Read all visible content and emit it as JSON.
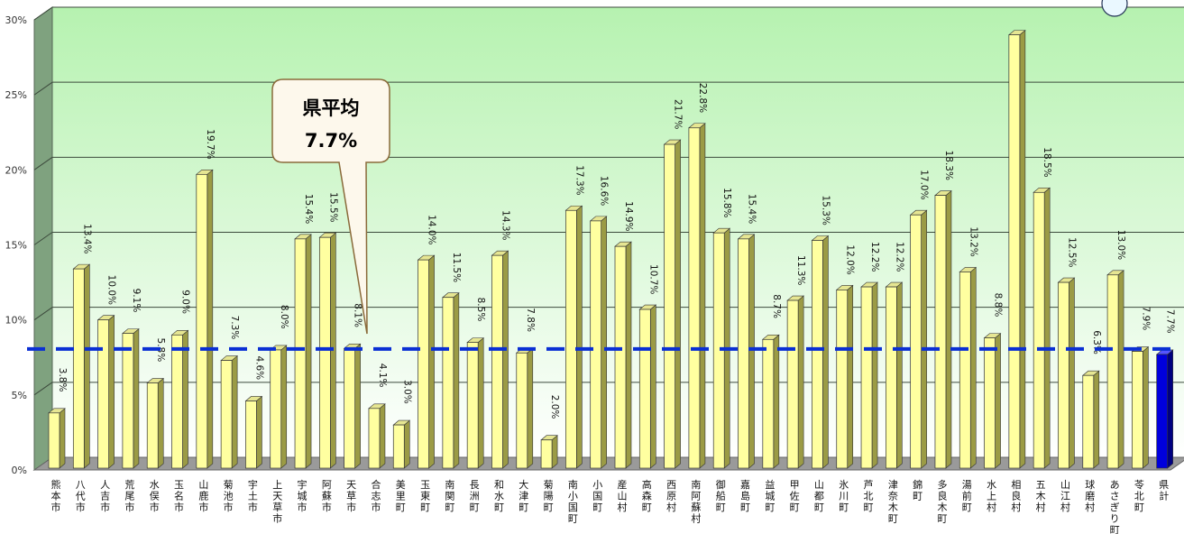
{
  "chart_data": {
    "type": "bar",
    "ylim": [
      0,
      30
    ],
    "y_ticks": [
      "0%",
      "5%",
      "10%",
      "15%",
      "20%",
      "25%",
      "30%"
    ],
    "grid": true,
    "value_suffix": "%",
    "categories": [
      "熊本市",
      "八代市",
      "人吉市",
      "荒尾市",
      "水俣市",
      "玉名市",
      "山鹿市",
      "菊池市",
      "宇土市",
      "上天草市",
      "宇城市",
      "阿蘇市",
      "天草市",
      "合志市",
      "美里町",
      "玉東町",
      "南関町",
      "長洲町",
      "和水町",
      "大津町",
      "菊陽町",
      "南小国町",
      "小国町",
      "産山村",
      "高森町",
      "西原村",
      "南阿蘇村",
      "御船町",
      "嘉島町",
      "益城町",
      "甲佐町",
      "山都町",
      "氷川町",
      "芦北町",
      "津奈木町",
      "錦町",
      "多良木町",
      "湯前町",
      "水上村",
      "相良村",
      "五木村",
      "山江村",
      "球磨村",
      "あさぎり町",
      "苓北町",
      "県計"
    ],
    "values": [
      3.8,
      13.4,
      10.0,
      9.1,
      5.8,
      9.0,
      19.7,
      7.3,
      4.6,
      8.0,
      15.4,
      15.5,
      8.1,
      4.1,
      3.0,
      14.0,
      11.5,
      8.5,
      14.3,
      7.8,
      2.0,
      17.3,
      16.6,
      14.9,
      10.7,
      21.7,
      22.8,
      15.8,
      15.4,
      8.7,
      11.3,
      15.3,
      12.0,
      12.2,
      12.2,
      17.0,
      18.3,
      13.2,
      8.8,
      29.0,
      18.5,
      12.5,
      6.3,
      13.0,
      7.9,
      7.7
    ],
    "value_labels": [
      "3.8%",
      "13.4%",
      "10.0%",
      "9.1%",
      "5.8%",
      "9.0%",
      "19.7%",
      "7.3%",
      "4.6%",
      "8.0%",
      "15.4%",
      "15.5%",
      "8.1%",
      "4.1%",
      "3.0%",
      "14.0%",
      "11.5%",
      "8.5%",
      "14.3%",
      "7.8%",
      "2.0%",
      "17.3%",
      "16.6%",
      "14.9%",
      "10.7%",
      "21.7%",
      "22.8%",
      "15.8%",
      "15.4%",
      "8.7%",
      "11.3%",
      "15.3%",
      "12.0%",
      "12.2%",
      "12.2%",
      "17.0%",
      "18.3%",
      "13.2%",
      "8.8%",
      "",
      "18.5%",
      "12.5%",
      "6.3%",
      "13.0%",
      "7.9%",
      "7.7%"
    ],
    "reference_line": {
      "value": 7.7
    },
    "callout": {
      "line1": "県平均",
      "line2": "7.7%"
    },
    "colors": {
      "bar_front": "#ffffa0",
      "bar_side": "#9b9b45",
      "bar_top": "#e6e692",
      "highlight_front": "#0000dd",
      "highlight_side": "#000080",
      "highlight_top": "#5555ff",
      "highlight_label": "#1a1ad0",
      "reference_line": "#0a2fd4",
      "bg_top": "#b6f2b0",
      "bg_bottom": "#ffffff",
      "callout_fill": "#fdf8ec",
      "callout_stroke": "#8a6a3a"
    }
  }
}
